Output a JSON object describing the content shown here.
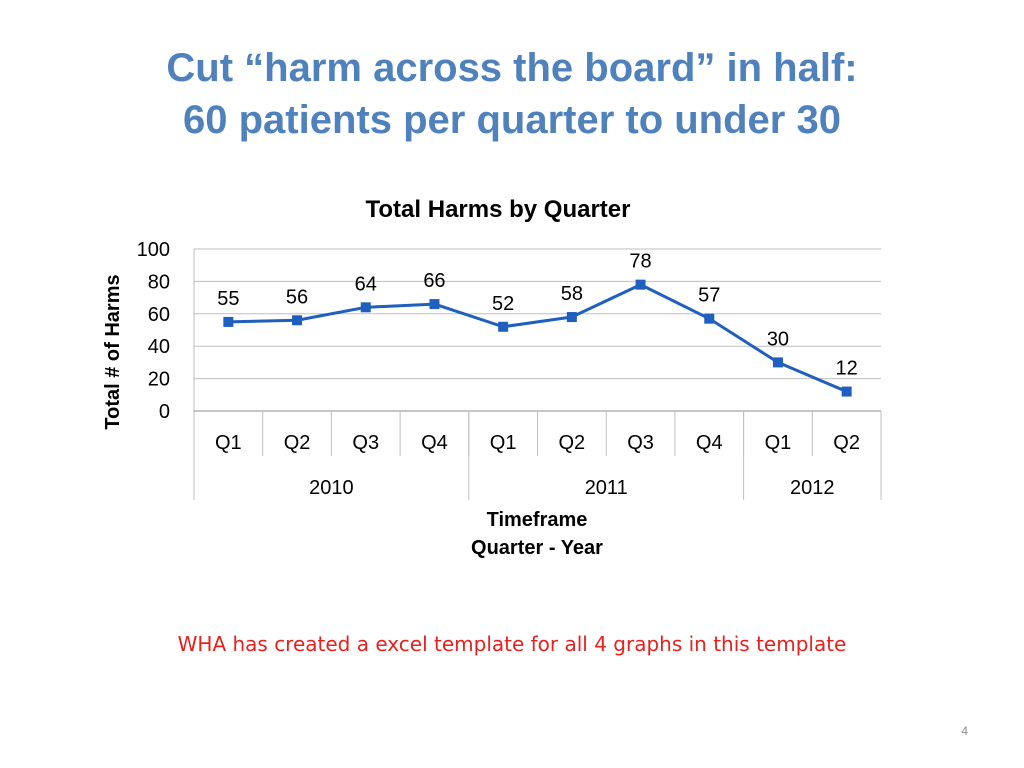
{
  "slide": {
    "title_line1": "Cut “harm across the board” in half:",
    "title_line2": "60 patients per quarter to under 30",
    "note": "WHA has created a excel template for all 4 graphs in this template",
    "page_number": "4"
  },
  "colors": {
    "title": "#4f81bd",
    "series": "#1f5fbf",
    "note": "#e8211e",
    "grid": "#bfbfbf"
  },
  "chart_data": {
    "type": "line",
    "title": "Total Harms by Quarter",
    "ylabel": "Total # of Harms",
    "xlabel_line1": "Timeframe",
    "xlabel_line2": "Quarter - Year",
    "ylim": [
      0,
      100
    ],
    "yticks": [
      0,
      20,
      40,
      60,
      80,
      100
    ],
    "grid": true,
    "categories": [
      "Q1",
      "Q2",
      "Q3",
      "Q4",
      "Q1",
      "Q2",
      "Q3",
      "Q4",
      "Q1",
      "Q2"
    ],
    "groups": [
      {
        "label": "2010",
        "count": 4
      },
      {
        "label": "2011",
        "count": 4
      },
      {
        "label": "2012",
        "count": 2
      }
    ],
    "series": [
      {
        "values": [
          55,
          56,
          64,
          66,
          52,
          58,
          78,
          57,
          30,
          12
        ]
      }
    ]
  }
}
